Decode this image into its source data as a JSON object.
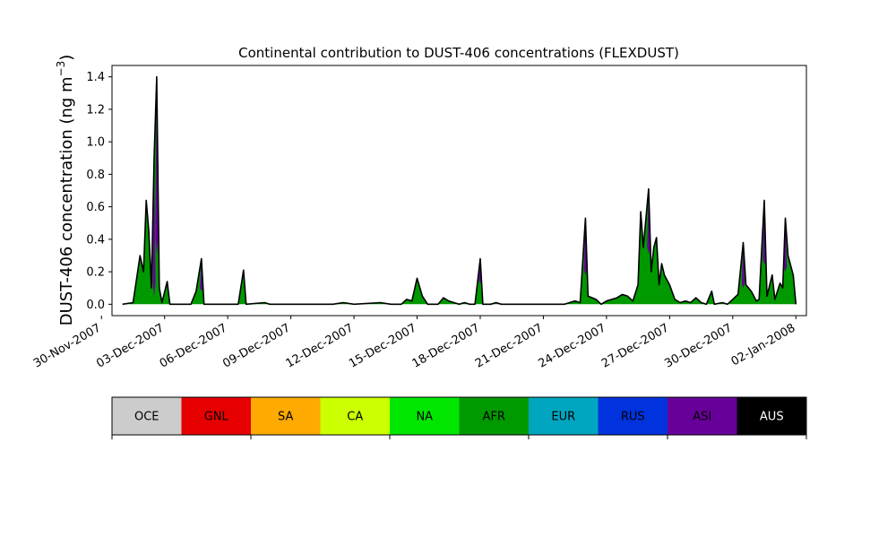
{
  "chart_data": {
    "type": "area",
    "title": "Continental contribution to DUST-406 concentrations (FLEXDUST)",
    "ylabel_main": "DUST-406 concentration (ng m",
    "ylabel_exp": "−3",
    "ylabel_close": ")",
    "xlabel": "",
    "x_unit": "date",
    "xlim": [
      "2007-11-30T12:00",
      "2008-01-02T12:00"
    ],
    "ylim": [
      -0.07,
      1.47
    ],
    "yticks": [
      0.0,
      0.2,
      0.4,
      0.6,
      0.8,
      1.0,
      1.2,
      1.4
    ],
    "ytick_labels": [
      "0.0",
      "0.2",
      "0.4",
      "0.6",
      "0.8",
      "1.0",
      "1.2",
      "1.4"
    ],
    "xticks": [
      "2007-11-30",
      "2007-12-03",
      "2007-12-06",
      "2007-12-09",
      "2007-12-12",
      "2007-12-15",
      "2007-12-18",
      "2007-12-21",
      "2007-12-24",
      "2007-12-27",
      "2007-12-30",
      "2008-01-02"
    ],
    "xtick_labels": [
      "30-Nov-2007",
      "03-Dec-2007",
      "06-Dec-2007",
      "09-Dec-2007",
      "12-Dec-2007",
      "15-Dec-2007",
      "18-Dec-2007",
      "21-Dec-2007",
      "24-Dec-2007",
      "27-Dec-2007",
      "30-Dec-2007",
      "02-Jan-2008"
    ],
    "legend": {
      "placement": "below",
      "entries": [
        {
          "name": "OCE",
          "color": "#cccccc",
          "text_color": "#000000"
        },
        {
          "name": "GNL",
          "color": "#e60000",
          "text_color": "#000000"
        },
        {
          "name": "SA",
          "color": "#ffaa00",
          "text_color": "#000000"
        },
        {
          "name": "CA",
          "color": "#ccff00",
          "text_color": "#000000"
        },
        {
          "name": "NA",
          "color": "#00e600",
          "text_color": "#000000"
        },
        {
          "name": "AFR",
          "color": "#009900",
          "text_color": "#000000"
        },
        {
          "name": "EUR",
          "color": "#00a6bf",
          "text_color": "#000000"
        },
        {
          "name": "RUS",
          "color": "#0033dd",
          "text_color": "#000000"
        },
        {
          "name": "ASI",
          "color": "#660099",
          "text_color": "#000000"
        },
        {
          "name": "AUS",
          "color": "#000000",
          "text_color": "#ffffff"
        }
      ]
    },
    "total": [
      {
        "x": "2007-12-01T00:00",
        "y": 0.0
      },
      {
        "x": "2007-12-01T12:00",
        "y": 0.01
      },
      {
        "x": "2007-12-01T20:00",
        "y": 0.3
      },
      {
        "x": "2007-12-02T00:00",
        "y": 0.2
      },
      {
        "x": "2007-12-02T03:00",
        "y": 0.64
      },
      {
        "x": "2007-12-02T06:00",
        "y": 0.45
      },
      {
        "x": "2007-12-02T09:00",
        "y": 0.1
      },
      {
        "x": "2007-12-02T12:00",
        "y": 0.9
      },
      {
        "x": "2007-12-02T15:00",
        "y": 1.4
      },
      {
        "x": "2007-12-02T18:00",
        "y": 0.1
      },
      {
        "x": "2007-12-02T21:00",
        "y": 0.01
      },
      {
        "x": "2007-12-03T03:00",
        "y": 0.14
      },
      {
        "x": "2007-12-03T06:00",
        "y": 0.0
      },
      {
        "x": "2007-12-04T06:00",
        "y": 0.0
      },
      {
        "x": "2007-12-04T12:00",
        "y": 0.08
      },
      {
        "x": "2007-12-04T18:00",
        "y": 0.28
      },
      {
        "x": "2007-12-04T21:00",
        "y": 0.0
      },
      {
        "x": "2007-12-06T12:00",
        "y": 0.0
      },
      {
        "x": "2007-12-06T18:00",
        "y": 0.21
      },
      {
        "x": "2007-12-06T21:00",
        "y": 0.0
      },
      {
        "x": "2007-12-07T18:00",
        "y": 0.01
      },
      {
        "x": "2007-12-08T00:00",
        "y": 0.0
      },
      {
        "x": "2007-12-11T00:00",
        "y": 0.0
      },
      {
        "x": "2007-12-11T12:00",
        "y": 0.01
      },
      {
        "x": "2007-12-12T00:00",
        "y": 0.0
      },
      {
        "x": "2007-12-13T06:00",
        "y": 0.01
      },
      {
        "x": "2007-12-13T18:00",
        "y": 0.0
      },
      {
        "x": "2007-12-14T06:00",
        "y": 0.0
      },
      {
        "x": "2007-12-14T12:00",
        "y": 0.03
      },
      {
        "x": "2007-12-14T18:00",
        "y": 0.02
      },
      {
        "x": "2007-12-15T00:00",
        "y": 0.16
      },
      {
        "x": "2007-12-15T06:00",
        "y": 0.05
      },
      {
        "x": "2007-12-15T12:00",
        "y": 0.0
      },
      {
        "x": "2007-12-16T00:00",
        "y": 0.0
      },
      {
        "x": "2007-12-16T06:00",
        "y": 0.04
      },
      {
        "x": "2007-12-16T12:00",
        "y": 0.02
      },
      {
        "x": "2007-12-16T18:00",
        "y": 0.01
      },
      {
        "x": "2007-12-17T00:00",
        "y": 0.0
      },
      {
        "x": "2007-12-17T06:00",
        "y": 0.01
      },
      {
        "x": "2007-12-17T12:00",
        "y": 0.0
      },
      {
        "x": "2007-12-17T18:00",
        "y": 0.0
      },
      {
        "x": "2007-12-18T00:00",
        "y": 0.28
      },
      {
        "x": "2007-12-18T03:00",
        "y": 0.0
      },
      {
        "x": "2007-12-18T12:00",
        "y": 0.0
      },
      {
        "x": "2007-12-18T18:00",
        "y": 0.01
      },
      {
        "x": "2007-12-19T00:00",
        "y": 0.0
      },
      {
        "x": "2007-12-22T00:00",
        "y": 0.0
      },
      {
        "x": "2007-12-22T12:00",
        "y": 0.02
      },
      {
        "x": "2007-12-22T18:00",
        "y": 0.01
      },
      {
        "x": "2007-12-23T00:00",
        "y": 0.53
      },
      {
        "x": "2007-12-23T03:00",
        "y": 0.05
      },
      {
        "x": "2007-12-23T12:00",
        "y": 0.03
      },
      {
        "x": "2007-12-23T18:00",
        "y": 0.0
      },
      {
        "x": "2007-12-24T00:00",
        "y": 0.02
      },
      {
        "x": "2007-12-24T12:00",
        "y": 0.04
      },
      {
        "x": "2007-12-24T18:00",
        "y": 0.06
      },
      {
        "x": "2007-12-25T00:00",
        "y": 0.05
      },
      {
        "x": "2007-12-25T06:00",
        "y": 0.02
      },
      {
        "x": "2007-12-25T12:00",
        "y": 0.12
      },
      {
        "x": "2007-12-25T15:00",
        "y": 0.57
      },
      {
        "x": "2007-12-25T18:00",
        "y": 0.35
      },
      {
        "x": "2007-12-26T00:00",
        "y": 0.71
      },
      {
        "x": "2007-12-26T03:00",
        "y": 0.2
      },
      {
        "x": "2007-12-26T06:00",
        "y": 0.35
      },
      {
        "x": "2007-12-26T09:00",
        "y": 0.41
      },
      {
        "x": "2007-12-26T12:00",
        "y": 0.12
      },
      {
        "x": "2007-12-26T15:00",
        "y": 0.25
      },
      {
        "x": "2007-12-26T18:00",
        "y": 0.18
      },
      {
        "x": "2007-12-27T00:00",
        "y": 0.12
      },
      {
        "x": "2007-12-27T06:00",
        "y": 0.03
      },
      {
        "x": "2007-12-27T12:00",
        "y": 0.01
      },
      {
        "x": "2007-12-27T18:00",
        "y": 0.02
      },
      {
        "x": "2007-12-28T00:00",
        "y": 0.01
      },
      {
        "x": "2007-12-28T06:00",
        "y": 0.04
      },
      {
        "x": "2007-12-28T12:00",
        "y": 0.01
      },
      {
        "x": "2007-12-28T18:00",
        "y": 0.0
      },
      {
        "x": "2007-12-29T00:00",
        "y": 0.08
      },
      {
        "x": "2007-12-29T03:00",
        "y": 0.0
      },
      {
        "x": "2007-12-29T12:00",
        "y": 0.01
      },
      {
        "x": "2007-12-29T18:00",
        "y": 0.0
      },
      {
        "x": "2007-12-30T06:00",
        "y": 0.06
      },
      {
        "x": "2007-12-30T12:00",
        "y": 0.38
      },
      {
        "x": "2007-12-30T15:00",
        "y": 0.12
      },
      {
        "x": "2007-12-30T21:00",
        "y": 0.08
      },
      {
        "x": "2007-12-31T03:00",
        "y": 0.02
      },
      {
        "x": "2007-12-31T06:00",
        "y": 0.03
      },
      {
        "x": "2007-12-31T12:00",
        "y": 0.64
      },
      {
        "x": "2007-12-31T15:00",
        "y": 0.05
      },
      {
        "x": "2007-12-31T21:00",
        "y": 0.18
      },
      {
        "x": "2008-01-01T00:00",
        "y": 0.03
      },
      {
        "x": "2008-01-01T06:00",
        "y": 0.13
      },
      {
        "x": "2008-01-01T09:00",
        "y": 0.1
      },
      {
        "x": "2008-01-01T12:00",
        "y": 0.53
      },
      {
        "x": "2008-01-01T15:00",
        "y": 0.3
      },
      {
        "x": "2008-01-01T21:00",
        "y": 0.18
      },
      {
        "x": "2008-01-02T00:00",
        "y": 0.0
      }
    ],
    "asi_peaks": [
      {
        "x": "2007-12-02T12:00",
        "y": 0.85
      },
      {
        "x": "2007-12-02T15:00",
        "y": 1.1
      },
      {
        "x": "2007-12-04T18:00",
        "y": 0.2
      },
      {
        "x": "2007-12-18T00:00",
        "y": 0.15
      },
      {
        "x": "2007-12-23T00:00",
        "y": 0.35
      },
      {
        "x": "2007-12-26T00:00",
        "y": 0.4
      },
      {
        "x": "2007-12-30T12:00",
        "y": 0.28
      },
      {
        "x": "2007-12-31T12:00",
        "y": 0.4
      },
      {
        "x": "2008-01-01T12:00",
        "y": 0.33
      }
    ]
  }
}
